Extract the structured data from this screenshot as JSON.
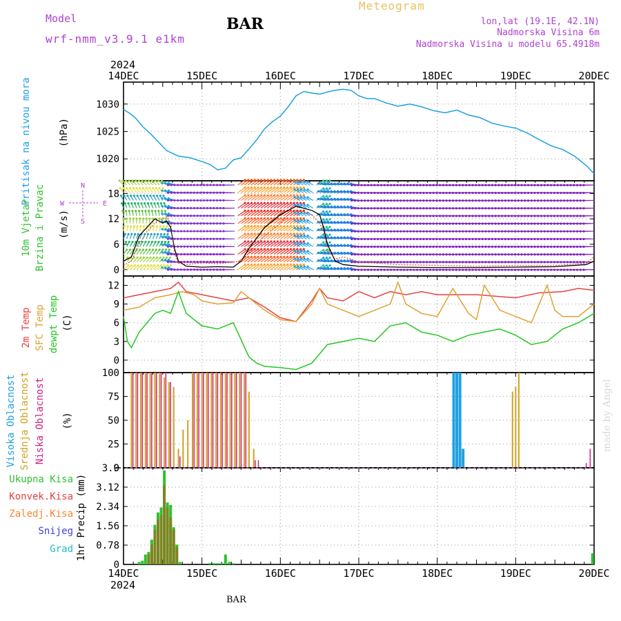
{
  "header": {
    "model_label": "Model",
    "model_name": "wrf-nmm_v3.9.1 e1km",
    "title": "BAR",
    "meteogram": "Meteogram",
    "coords": "lon,lat (19.1E, 42.1N)",
    "altitude": "Nadmorska Visina 6m",
    "model_altitude": "Nadmorska Visina u modelu 65.4918m",
    "footer_station": "BAR",
    "watermark": "made by Angel"
  },
  "colors": {
    "purple": "#b040d0",
    "pressure": "#1ca0e0",
    "t2m": "#e84040",
    "sfc": "#e0a030",
    "dewpt": "#20c820",
    "high_cloud": "#20a0e0",
    "mid_cloud": "#d0a020",
    "low_cloud": "#d02080",
    "precip_total": "#30c030",
    "precip_conv": "#e04040",
    "precip_frz": "#ff8030",
    "snow": "#4040e0",
    "hail": "#20c0c0"
  },
  "time_axis": {
    "year": "2024",
    "days": [
      "14DEC",
      "15DEC",
      "16DEC",
      "17DEC",
      "18DEC",
      "19DEC",
      "20DEC"
    ]
  },
  "chart_data": [
    {
      "type": "line",
      "panel": "pressure",
      "ylabel": "Pritisak na nivou mora",
      "units": "(hPa)",
      "ylim": [
        1016,
        1034
      ],
      "yticks": [
        1020,
        1025,
        1030
      ],
      "x_days": [
        0,
        0.08,
        0.15,
        0.25,
        0.35,
        0.45,
        0.55,
        0.7,
        0.85,
        1.0,
        1.1,
        1.2,
        1.3,
        1.4,
        1.5,
        1.6,
        1.7,
        1.8,
        1.9,
        2.0,
        2.1,
        2.2,
        2.3,
        2.4,
        2.5,
        2.6,
        2.7,
        2.8,
        2.9,
        3.0,
        3.1,
        3.2,
        3.35,
        3.5,
        3.65,
        3.8,
        3.95,
        4.1,
        4.25,
        4.4,
        4.55,
        4.7,
        4.85,
        5.0,
        5.15,
        5.3,
        5.45,
        5.6,
        5.75,
        5.9,
        6.0
      ],
      "values": [
        1029,
        1028.3,
        1027.5,
        1025.8,
        1024.5,
        1023,
        1021.5,
        1020.5,
        1020.2,
        1019.5,
        1019,
        1018,
        1018.3,
        1019.8,
        1020.2,
        1021.8,
        1023.5,
        1025.5,
        1026.8,
        1027.8,
        1029.5,
        1031.5,
        1032.3,
        1032,
        1031.8,
        1032.2,
        1032.5,
        1032.7,
        1032.5,
        1031.5,
        1031,
        1031,
        1030.2,
        1029.6,
        1030,
        1029.5,
        1028.8,
        1028.4,
        1028.9,
        1028,
        1027.5,
        1026.5,
        1026,
        1025.6,
        1024.7,
        1023.5,
        1022.4,
        1021.7,
        1020.5,
        1018.8,
        1017.3
      ]
    },
    {
      "type": "line",
      "panel": "wind",
      "ylabel": "10m Vjetar",
      "ylabel2": "Brzina i Pravac",
      "units": "(m/s)",
      "compass": {
        "n": "N",
        "w": "W",
        "e": "E",
        "s": "S"
      },
      "ylim": [
        -1.5,
        21
      ],
      "yticks": [
        0,
        6,
        12,
        18
      ],
      "speed_x_days": [
        0,
        0.1,
        0.2,
        0.3,
        0.4,
        0.5,
        0.55,
        0.6,
        0.65,
        0.7,
        0.8,
        1.0,
        1.2,
        1.4,
        1.5,
        1.6,
        1.8,
        2.0,
        2.1,
        2.2,
        2.3,
        2.4,
        2.5,
        2.55,
        2.6,
        2.65,
        2.7,
        2.8,
        2.9,
        3.0,
        3.5,
        4.0,
        4.5,
        5.0,
        5.5,
        5.9,
        6.0
      ],
      "speed_values": [
        2,
        3,
        8,
        10,
        12,
        11,
        11.5,
        10,
        5,
        2,
        0.8,
        0.6,
        0.7,
        0.6,
        2,
        5,
        10,
        13,
        14,
        15,
        14.5,
        14,
        13,
        10,
        6,
        4,
        2,
        1.2,
        1.0,
        0.8,
        0.6,
        0.5,
        0.5,
        0.6,
        0.7,
        1.2,
        2.0
      ],
      "gust_values": [
        1,
        2,
        6,
        9,
        11,
        12,
        12.5,
        11,
        4,
        1.5,
        1.2,
        1.6,
        1.4,
        1.8,
        2,
        4,
        8,
        11,
        13,
        14,
        13.5,
        13,
        11,
        9,
        5,
        3.5,
        2.5,
        3.0,
        2.5,
        1.8,
        1.2,
        1.0,
        0.8,
        1.0,
        1.0,
        1.5,
        3.0
      ]
    },
    {
      "type": "line",
      "panel": "temperature",
      "ylabels": [
        "2m Temp",
        "SFC Temp",
        "dewpt Temp"
      ],
      "units": "(C)",
      "ylim": [
        -2,
        13.5
      ],
      "yticks": [
        0,
        3,
        6,
        9,
        12
      ],
      "series": [
        {
          "name": "2m Temp",
          "x_days": [
            0,
            0.2,
            0.4,
            0.6,
            0.7,
            0.8,
            1.0,
            1.2,
            1.4,
            1.6,
            1.8,
            2.0,
            2.2,
            2.4,
            2.5,
            2.6,
            2.8,
            3.0,
            3.2,
            3.4,
            3.6,
            3.8,
            4.0,
            4.5,
            5.0,
            5.3,
            5.6,
            5.8,
            6.0
          ],
          "values": [
            10,
            10.5,
            11,
            11.5,
            12.5,
            11,
            10.5,
            10,
            9.5,
            10,
            8.5,
            6.8,
            6.2,
            9.5,
            11.5,
            10,
            9.5,
            11,
            10,
            11,
            10.5,
            11,
            10.5,
            10.5,
            10,
            10.8,
            11,
            11.5,
            11.2
          ]
        },
        {
          "name": "SFC Temp",
          "x_days": [
            0,
            0.2,
            0.4,
            0.6,
            0.75,
            0.9,
            1.0,
            1.2,
            1.4,
            1.5,
            1.6,
            1.8,
            2.0,
            2.2,
            2.4,
            2.5,
            2.6,
            2.8,
            3.0,
            3.2,
            3.4,
            3.5,
            3.6,
            3.8,
            4.0,
            4.2,
            4.4,
            4.5,
            4.6,
            4.8,
            5.0,
            5.2,
            5.4,
            5.5,
            5.6,
            5.8,
            6.0
          ],
          "values": [
            8,
            8.5,
            10,
            10.5,
            11,
            10.5,
            9.5,
            9,
            9.2,
            11,
            10,
            8,
            6.5,
            6.2,
            9,
            11.5,
            9,
            8,
            7,
            8,
            9,
            12.5,
            9,
            7.5,
            7,
            11.5,
            7.5,
            6.5,
            12,
            8,
            7,
            6,
            12,
            8,
            7,
            7,
            9
          ]
        },
        {
          "name": "dewpt Temp",
          "x_days": [
            0,
            0.05,
            0.1,
            0.2,
            0.3,
            0.4,
            0.5,
            0.6,
            0.7,
            0.8,
            1.0,
            1.2,
            1.4,
            1.6,
            1.7,
            1.8,
            2.0,
            2.2,
            2.4,
            2.5,
            2.6,
            2.8,
            3.0,
            3.2,
            3.4,
            3.6,
            3.8,
            4.0,
            4.2,
            4.4,
            4.6,
            4.8,
            5.0,
            5.2,
            5.4,
            5.6,
            5.8,
            6.0
          ],
          "values": [
            7,
            3,
            2,
            4.5,
            6,
            7.5,
            8,
            7.5,
            11,
            7.5,
            5.5,
            5,
            6,
            0.5,
            -0.5,
            -1,
            -1.2,
            -1.5,
            -0.5,
            1,
            2.5,
            3,
            3.5,
            3,
            5.5,
            6,
            4.5,
            4,
            3,
            4,
            4.5,
            5,
            4,
            2.5,
            3,
            5,
            6,
            7.5
          ]
        }
      ]
    },
    {
      "type": "bar",
      "panel": "clouds",
      "ylabels": [
        "Visoka Oblacnost",
        "Srednja Oblacnost",
        "Niska Oblacnost"
      ],
      "units": "(%)",
      "ylim": [
        0,
        100
      ],
      "yticks": [
        0,
        25,
        50,
        75,
        100
      ],
      "series": [
        {
          "name": "Visoka Oblacnost",
          "x_days": [
            4.21,
            4.25,
            4.29,
            4.33
          ],
          "values": [
            100,
            100,
            100,
            20
          ]
        },
        {
          "name": "Srednja Oblacnost",
          "x_days": [
            0.1,
            0.16,
            0.22,
            0.28,
            0.34,
            0.4,
            0.46,
            0.52,
            0.58,
            0.64,
            0.7,
            0.76,
            0.82,
            0.88,
            0.94,
            1.0,
            1.06,
            1.12,
            1.18,
            1.24,
            1.3,
            1.36,
            1.42,
            1.48,
            1.54,
            1.6,
            1.66,
            4.96,
            5.0,
            5.04
          ],
          "values": [
            100,
            100,
            100,
            100,
            100,
            100,
            100,
            95,
            90,
            85,
            20,
            40,
            50,
            100,
            100,
            100,
            100,
            100,
            100,
            100,
            100,
            100,
            100,
            100,
            100,
            80,
            20,
            80,
            85,
            100
          ]
        },
        {
          "name": "Niska Oblacnost",
          "x_days": [
            0.12,
            0.18,
            0.24,
            0.3,
            0.36,
            0.42,
            0.48,
            0.54,
            0.6,
            0.72,
            0.9,
            0.96,
            1.02,
            1.08,
            1.14,
            1.2,
            1.26,
            1.32,
            1.38,
            1.44,
            1.5,
            1.56,
            1.68,
            1.72,
            5.9,
            5.95
          ],
          "values": [
            100,
            100,
            100,
            100,
            100,
            100,
            100,
            100,
            90,
            12,
            100,
            100,
            100,
            100,
            100,
            100,
            100,
            100,
            100,
            100,
            100,
            100,
            8,
            8,
            5,
            20
          ]
        }
      ]
    },
    {
      "type": "bar",
      "panel": "precipitation",
      "ylabels": [
        "Ukupna Kisa",
        "Konvek.Kisa",
        "Zaledj.Kisa",
        "Snijeg",
        "Grad"
      ],
      "units": "1hr Precip (mm)",
      "ylim": [
        0,
        3.9
      ],
      "yticks": [
        0,
        0.78,
        1.56,
        2.34,
        3.12,
        3.9
      ],
      "series": [
        {
          "name": "Ukupna Kisa",
          "x_days": [
            0.2,
            0.24,
            0.28,
            0.32,
            0.36,
            0.4,
            0.44,
            0.48,
            0.52,
            0.56,
            0.6,
            0.64,
            0.68,
            0.72,
            1.1,
            1.15,
            1.2,
            1.25,
            1.3,
            1.35,
            1.4,
            5.98
          ],
          "values": [
            0.1,
            0.15,
            0.4,
            0.5,
            1.0,
            1.6,
            2.1,
            2.3,
            3.8,
            2.5,
            2.4,
            1.5,
            0.8,
            0.1,
            0.05,
            0.05,
            0.05,
            0.05,
            0.4,
            0.1,
            0.05,
            0.45
          ]
        },
        {
          "name": "Konvek.Kisa",
          "x_days": [
            0.32,
            0.36,
            0.4,
            0.44,
            0.48,
            0.52,
            0.56,
            0.6,
            0.64,
            0.68
          ],
          "values": [
            0.4,
            0.8,
            1.4,
            1.8,
            2.0,
            3.2,
            2.3,
            1.9,
            1.4,
            0.7
          ]
        }
      ]
    }
  ]
}
